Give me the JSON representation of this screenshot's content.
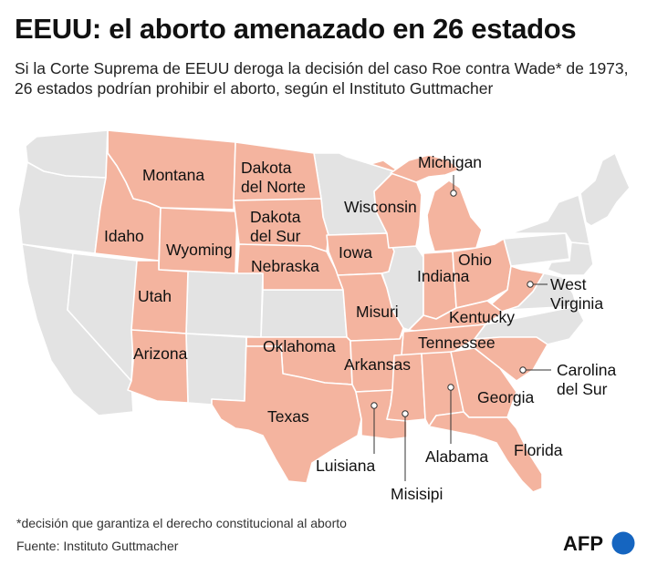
{
  "title": "EEUU: el aborto amenazado en 26 estados",
  "subtitle": "Si la Corte Suprema de EEUU deroga la decisión del caso Roe contra Wade* de 1973, 26 estados podrían prohibir el aborto, según el Instituto Guttmacher",
  "colors": {
    "ban_states": "#f4b49f",
    "other_states": "#e3e3e3",
    "logo_circle": "#1565c0"
  },
  "states": {
    "montana": "Montana",
    "dakota_norte": [
      "Dakota",
      "del Norte"
    ],
    "idaho": "Idaho",
    "wyoming": "Wyoming",
    "dakota_sur": [
      "Dakota",
      "del Sur"
    ],
    "nebraska": "Nebraska",
    "utah": "Utah",
    "arizona": "Arizona",
    "wisconsin": "Wisconsin",
    "michigan": "Michigan",
    "iowa": "Iowa",
    "indiana": "Indiana",
    "ohio": "Ohio",
    "west_virginia": [
      "West",
      "Virginia"
    ],
    "kentucky": "Kentucky",
    "misuri": "Misuri",
    "oklahoma": "Oklahoma",
    "arkansas": "Arkansas",
    "tennessee": "Tennessee",
    "carolina_sur": [
      "Carolina",
      "del Sur"
    ],
    "texas": "Texas",
    "georgia": "Georgia",
    "luisiana": "Luisiana",
    "alabama": "Alabama",
    "florida": "Florida",
    "misisipi": "Misisipi"
  },
  "note": "*decisión que garantiza el derecho constitucional al aborto",
  "source": "Fuente: Instituto Guttmacher",
  "logo_text": "AFP"
}
